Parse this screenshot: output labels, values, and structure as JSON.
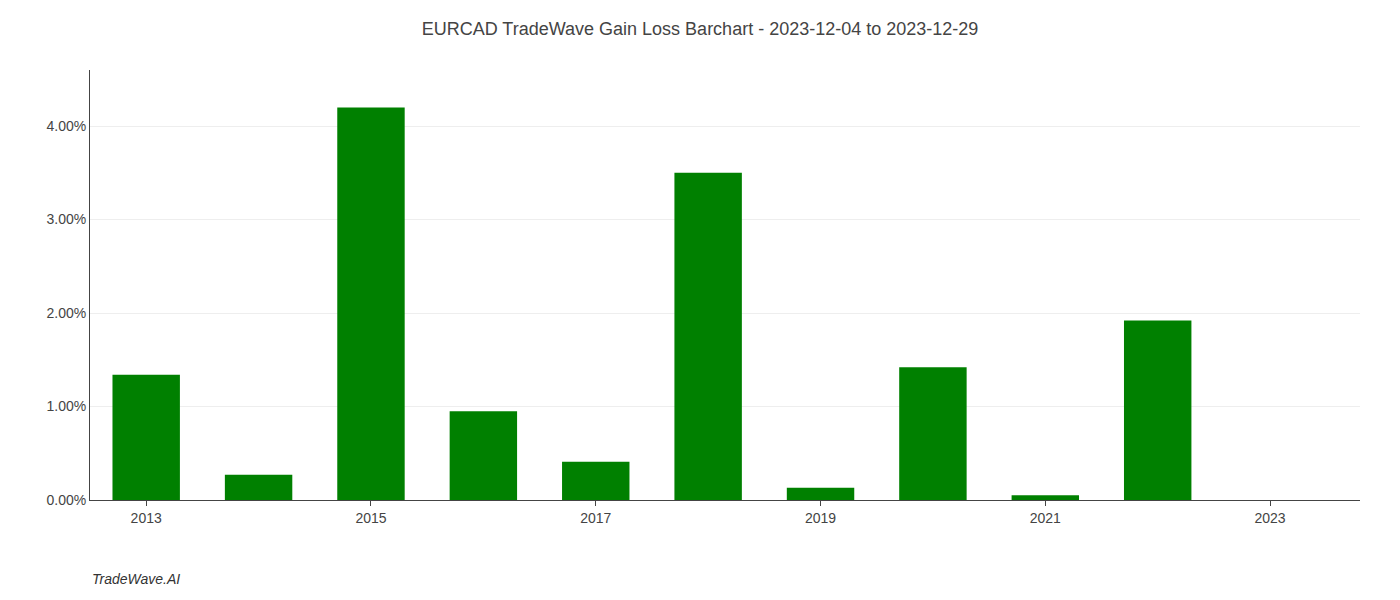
{
  "chart_data": {
    "type": "bar",
    "title": "EURCAD TradeWave Gain Loss Barchart - 2023-12-04 to 2023-12-29",
    "annotations": [
      "TradeWave.AI"
    ],
    "x": [
      2013,
      2014,
      2015,
      2016,
      2017,
      2018,
      2019,
      2020,
      2021,
      2022,
      2023
    ],
    "values": [
      0.0134,
      0.0027,
      0.042,
      0.0095,
      0.0041,
      0.035,
      0.0013,
      0.0142,
      0.0005,
      0.0192,
      0.0
    ],
    "color": "#008000",
    "xlim": [
      2012.5,
      2023.8
    ],
    "xticks": [
      2013,
      2015,
      2017,
      2019,
      2021,
      2023
    ],
    "ylim": [
      0,
      0.046
    ],
    "yticks": [
      {
        "value": 0.0,
        "label": "0.00%"
      },
      {
        "value": 0.01,
        "label": "1.00%"
      },
      {
        "value": 0.02,
        "label": "2.00%"
      },
      {
        "value": 0.03,
        "label": "3.00%"
      },
      {
        "value": 0.04,
        "label": "4.00%"
      }
    ],
    "grid": true
  }
}
